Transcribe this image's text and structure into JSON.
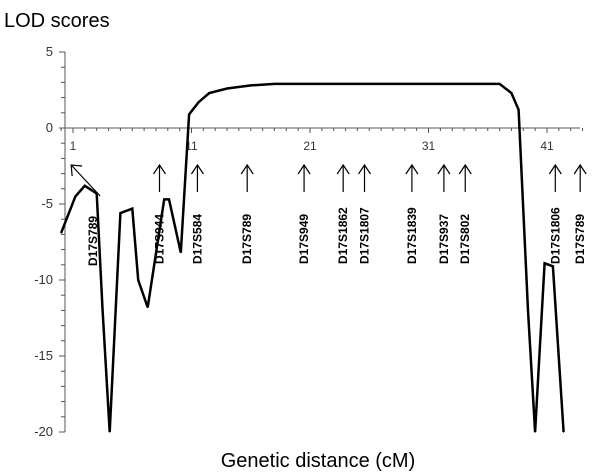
{
  "chart_data": {
    "type": "line",
    "title": "",
    "ylabel": "LOD scores",
    "xlabel": "Genetic distance (cM)",
    "xlim": [
      0,
      43.5
    ],
    "ylim": [
      -20,
      5
    ],
    "yticks": [
      5,
      0,
      -5,
      -10,
      -15,
      -20
    ],
    "xticks": [
      1,
      11,
      21,
      31,
      41
    ],
    "grid": false,
    "series": [
      {
        "name": "",
        "x": [
          0,
          1.2,
          2,
          3,
          3.5,
          4.1,
          5,
          6,
          6.5,
          7.3,
          8.7,
          9.1,
          10.1,
          10.8,
          11.6,
          12.5,
          14,
          16,
          18,
          20,
          25,
          30,
          35,
          37,
          38,
          38.6,
          39.4,
          40,
          40.8,
          41.5,
          42.4
        ],
        "values": [
          -6.9,
          -4.5,
          -3.8,
          -4.3,
          -12,
          -20,
          -5.6,
          -5.3,
          -10,
          -11.8,
          -4.7,
          -4.7,
          -8.2,
          0.9,
          1.7,
          2.3,
          2.6,
          2.8,
          2.9,
          2.9,
          2.9,
          2.9,
          2.9,
          2.9,
          2.3,
          1.2,
          -12,
          -20,
          -8.9,
          -9.1,
          -20
        ]
      }
    ],
    "markers": [
      {
        "label": "D17S789",
        "x": 2.7,
        "arrow": "diagonal"
      },
      {
        "label": "D17S944",
        "x": 8.3,
        "arrow": "up"
      },
      {
        "label": "D17S584",
        "x": 11.5,
        "arrow": "up"
      },
      {
        "label": "D17S789",
        "x": 15.7,
        "arrow": "up"
      },
      {
        "label": "D17S949",
        "x": 20.5,
        "arrow": "up"
      },
      {
        "label": "D17S1862",
        "x": 23.8,
        "arrow": "up"
      },
      {
        "label": "D17S1807",
        "x": 25.6,
        "arrow": "up"
      },
      {
        "label": "D17S1839",
        "x": 29.6,
        "arrow": "up"
      },
      {
        "label": "D17S937",
        "x": 32.3,
        "arrow": "up"
      },
      {
        "label": "D17S802",
        "x": 34.1,
        "arrow": "up"
      },
      {
        "label": "D17S1806",
        "x": 41.7,
        "arrow": "up"
      },
      {
        "label": "D17S789",
        "x": 43.8,
        "arrow": "up"
      }
    ]
  }
}
